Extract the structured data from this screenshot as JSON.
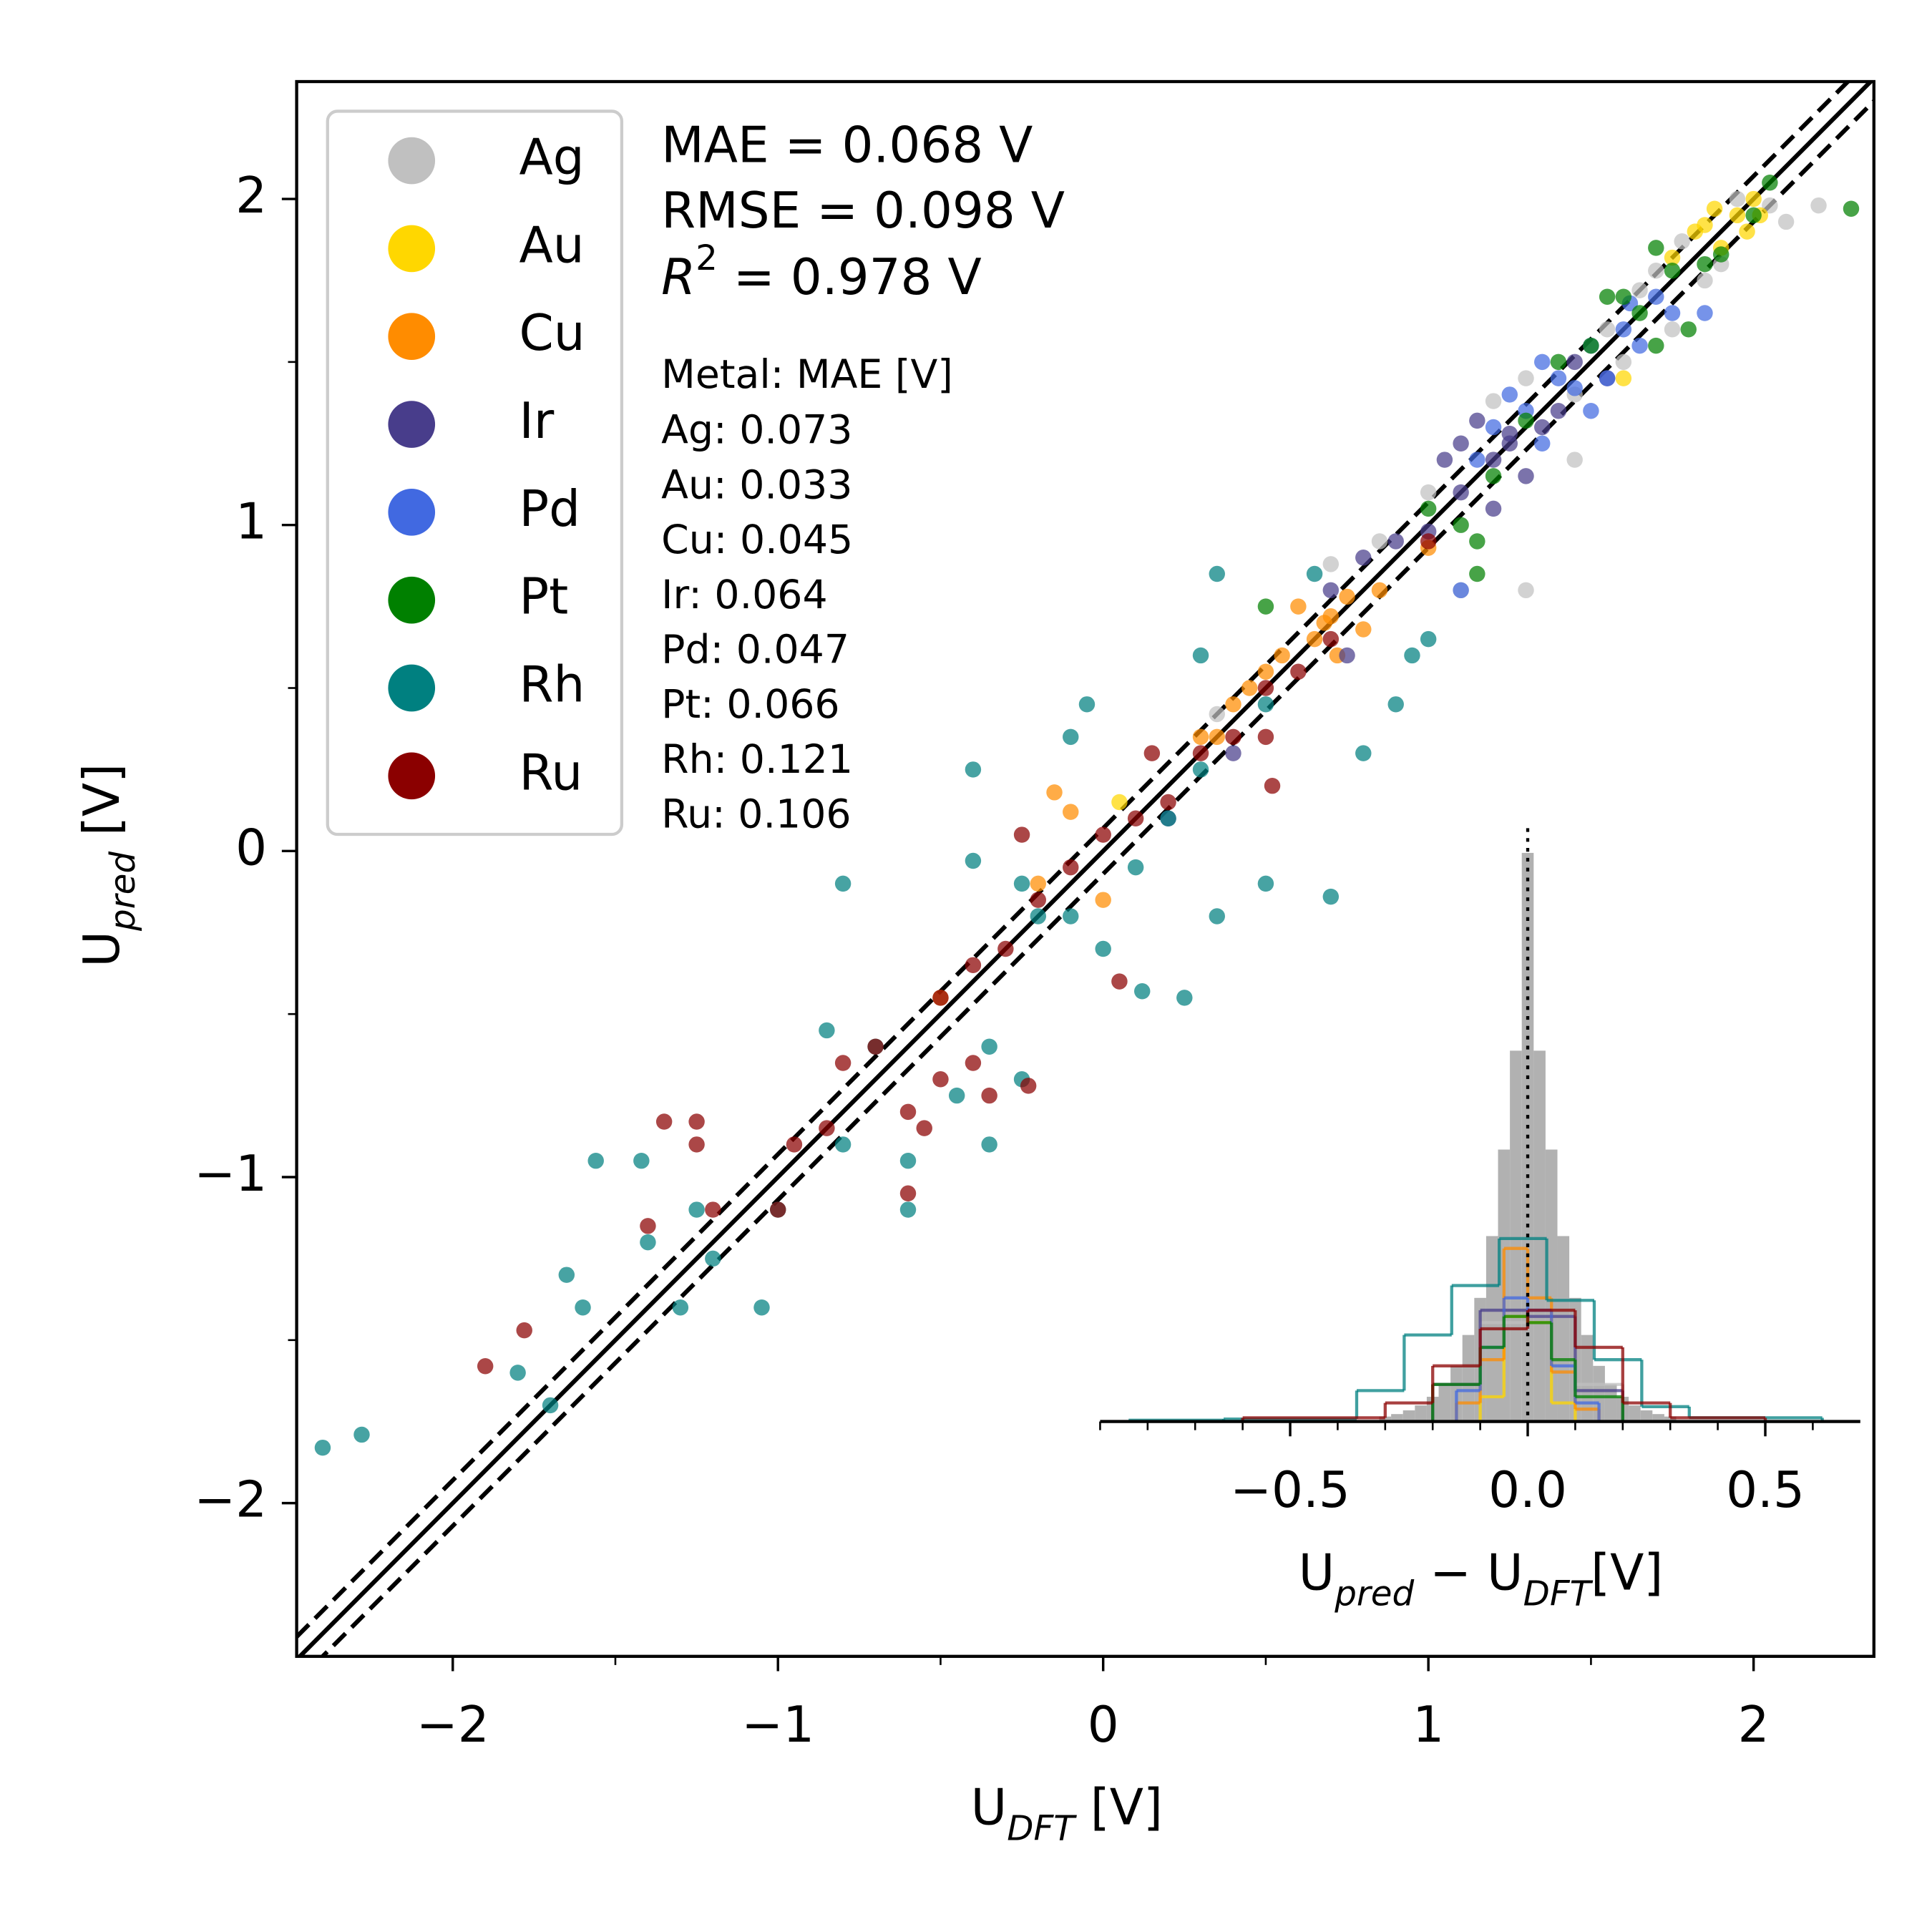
{
  "chart_data": [
    {
      "type": "scatter",
      "xlabel": {
        "base": "U",
        "sub": "DFT",
        "rest": " [V]"
      },
      "ylabel": {
        "base": "U",
        "sub": "pred",
        "rest": " [V]"
      },
      "xlim": [
        -2.48,
        2.37
      ],
      "ylim": [
        -2.47,
        2.36
      ],
      "xticks": [
        {
          "value": -2,
          "label": "−2"
        },
        {
          "value": -1,
          "label": "−1"
        },
        0,
        1,
        2
      ],
      "yticks": [
        {
          "value": -2,
          "label": "−2"
        },
        {
          "value": -1,
          "label": "−1"
        },
        0,
        1,
        2
      ],
      "xminor": [
        -1.5,
        -0.5,
        0.5,
        1.5
      ],
      "yminor": [
        -1.5,
        -0.5,
        0.5,
        1.5
      ],
      "band": 0.07,
      "legend_loc": "upper left",
      "annotations": {
        "mae": "MAE = 0.068 V",
        "rmse": "RMSE = 0.098 V",
        "r2": {
          "base": "R",
          "sup": "2",
          "rest": " = 0.978 V"
        },
        "metal_header": "Metal: MAE [V]",
        "metal_mae": [
          "Ag: 0.073",
          "Au: 0.033",
          "Cu: 0.045",
          "Ir: 0.064",
          "Pd: 0.047",
          "Pt: 0.066",
          "Rh: 0.121",
          "Ru: 0.106"
        ]
      },
      "series": [
        {
          "name": "Ag",
          "color": "#c0c0c0",
          "x": [
            1.95,
            2.05,
            2.1,
            1.78,
            1.85,
            1.7,
            1.55,
            1.45,
            1.2,
            1.3,
            1.6,
            1.75,
            1.0,
            0.85,
            1.1,
            0.35,
            1.45,
            2.2,
            1.65,
            1.9,
            0.7,
            1.3
          ],
          "y": [
            2.0,
            1.98,
            1.93,
            1.87,
            1.75,
            1.78,
            1.6,
            1.4,
            1.38,
            1.45,
            1.5,
            1.6,
            1.1,
            0.95,
            0.8,
            0.42,
            1.2,
            1.98,
            1.72,
            1.8,
            0.88,
            0.8
          ]
        },
        {
          "name": "Au",
          "color": "#ffd700",
          "x": [
            1.85,
            1.95,
            2.0,
            1.9,
            1.82,
            1.98,
            1.75,
            1.6,
            1.88,
            2.02,
            0.05
          ],
          "y": [
            1.92,
            1.95,
            2.0,
            1.85,
            1.9,
            1.9,
            1.82,
            1.45,
            1.97,
            1.95,
            0.15
          ]
        },
        {
          "name": "Cu",
          "color": "#ff8c00",
          "x": [
            0.7,
            0.75,
            0.65,
            0.68,
            0.72,
            0.55,
            0.5,
            0.45,
            0.85,
            0.8,
            0.4,
            0.35,
            -0.1,
            -0.15,
            0.0,
            -0.2,
            0.6,
            1.0,
            0.3,
            -0.5
          ],
          "y": [
            0.72,
            0.78,
            0.65,
            0.7,
            0.6,
            0.6,
            0.55,
            0.5,
            0.8,
            0.68,
            0.45,
            0.35,
            0.12,
            0.18,
            -0.15,
            -0.1,
            0.75,
            0.93,
            0.35,
            -0.45
          ]
        },
        {
          "name": "Ir",
          "color": "#483d8b",
          "x": [
            1.2,
            1.25,
            1.1,
            1.3,
            1.4,
            1.0,
            0.9,
            1.15,
            1.35,
            1.2,
            0.8,
            0.7,
            1.05,
            1.45,
            1.1,
            0.2,
            0.4,
            0.75,
            1.55,
            1.25
          ],
          "y": [
            1.2,
            1.28,
            1.1,
            1.15,
            1.35,
            0.98,
            0.95,
            1.32,
            1.3,
            1.05,
            0.9,
            0.8,
            1.2,
            1.5,
            1.25,
            0.1,
            0.3,
            0.6,
            1.45,
            1.25
          ]
        },
        {
          "name": "Pd",
          "color": "#4169e1",
          "x": [
            1.3,
            1.4,
            1.35,
            1.45,
            1.5,
            1.55,
            1.2,
            1.25,
            1.6,
            1.7,
            1.75,
            1.85,
            1.1,
            1.65,
            1.5,
            1.15,
            1.35,
            1.62
          ],
          "y": [
            1.35,
            1.45,
            1.5,
            1.42,
            1.55,
            1.45,
            1.3,
            1.4,
            1.6,
            1.7,
            1.65,
            1.65,
            0.8,
            1.55,
            1.35,
            1.2,
            1.25,
            1.68
          ]
        },
        {
          "name": "Pt",
          "color": "#008000",
          "x": [
            1.6,
            1.65,
            1.75,
            1.85,
            1.9,
            2.0,
            2.3,
            1.5,
            1.4,
            1.7,
            1.55,
            1.2,
            1.1,
            1.0,
            1.15,
            1.15,
            0.5,
            1.8,
            2.05,
            1.3,
            1.7
          ],
          "y": [
            1.7,
            1.65,
            1.78,
            1.8,
            1.83,
            1.95,
            1.97,
            1.55,
            1.5,
            1.55,
            1.7,
            1.15,
            1.0,
            1.05,
            0.95,
            0.85,
            0.75,
            1.6,
            2.05,
            1.32,
            1.85
          ]
        },
        {
          "name": "Rh",
          "color": "#008080",
          "x": [
            -2.4,
            -2.28,
            -1.7,
            -1.8,
            -1.6,
            -1.65,
            -1.56,
            -1.42,
            -1.3,
            -1.05,
            -1.4,
            -1.2,
            -1.0,
            -0.8,
            -0.6,
            -0.85,
            -0.7,
            -0.6,
            -0.45,
            -0.35,
            -0.2,
            -0.25,
            -0.1,
            0.1,
            0.2,
            0.3,
            0.35,
            0.5,
            0.8,
            0.7,
            0.35,
            0.3,
            0.5,
            0.9,
            0.95,
            -0.4,
            -0.05,
            -0.1,
            -0.4,
            0.12,
            0.25,
            0.0,
            -0.8,
            -1.25,
            -0.35,
            0.65,
            1.0,
            -0.25
          ],
          "y": [
            -1.83,
            -1.79,
            -1.7,
            -1.6,
            -1.4,
            -1.3,
            -0.95,
            -0.95,
            -1.4,
            -1.4,
            -1.2,
            -1.25,
            -1.1,
            -0.9,
            -1.1,
            -0.55,
            -0.6,
            -0.95,
            -0.75,
            -0.6,
            -0.2,
            -0.7,
            -0.2,
            -0.05,
            0.1,
            0.25,
            -0.2,
            -0.1,
            0.3,
            -0.14,
            0.85,
            0.6,
            0.45,
            0.45,
            0.6,
            0.25,
            0.45,
            0.35,
            -0.03,
            -0.43,
            -0.45,
            -0.3,
            -0.1,
            -1.1,
            -0.9,
            0.85,
            0.65,
            -0.1
          ]
        },
        {
          "name": "Ru",
          "color": "#8b0000",
          "x": [
            -1.9,
            -1.78,
            -1.35,
            -1.25,
            -1.4,
            -1.2,
            -1.0,
            -0.95,
            -0.85,
            -0.7,
            -0.6,
            -0.5,
            -0.4,
            -0.3,
            -0.2,
            -0.1,
            0.0,
            0.1,
            0.2,
            0.3,
            0.4,
            0.5,
            0.6,
            0.5,
            0.05,
            -0.25,
            -0.4,
            -0.8,
            -1.25,
            0.15,
            0.7,
            -0.5,
            -0.35,
            -0.23,
            -0.55,
            0.52,
            -0.6,
            1.0
          ],
          "y": [
            -1.58,
            -1.47,
            -0.83,
            -0.83,
            -1.15,
            -1.1,
            -1.1,
            -0.9,
            -0.85,
            -0.6,
            -0.8,
            -0.45,
            -0.35,
            -0.3,
            -0.15,
            -0.05,
            0.05,
            0.1,
            0.15,
            0.3,
            0.35,
            0.5,
            0.55,
            0.35,
            -0.4,
            0.05,
            -0.65,
            -0.65,
            -0.9,
            0.3,
            0.65,
            -0.7,
            -0.75,
            -0.72,
            -0.85,
            0.2,
            -1.05,
            0.95
          ]
        }
      ]
    },
    {
      "type": "histogram",
      "xlabel": {
        "base1": "U",
        "sub1": "pred",
        "mid": " − ",
        "base2": "U",
        "sub2": "DFT",
        "rest": "[V]"
      },
      "xlim": [
        -0.9,
        0.7
      ],
      "ylim": [
        0,
        480
      ],
      "xticks": [
        {
          "value": -0.5,
          "label": "−0.5"
        },
        {
          "value": 0,
          "label": "0.0"
        },
        {
          "value": 0.5,
          "label": "0.5"
        }
      ],
      "xminor": [
        -0.9,
        -0.8,
        -0.7,
        -0.6,
        -0.4,
        -0.3,
        -0.2,
        -0.1,
        0.1,
        0.2,
        0.3,
        0.4,
        0.6
      ],
      "vline": 0,
      "series": [
        {
          "color": "#a9a9a9",
          "filled": true,
          "bins": [
            -0.3125,
            -0.2875,
            -0.2625,
            -0.2375,
            -0.2125,
            -0.1875,
            -0.1625,
            -0.1375,
            -0.1125,
            -0.0875,
            -0.0625,
            -0.0375,
            -0.0125,
            0.0125,
            0.0375,
            0.0625,
            0.0875,
            0.1125,
            0.1375,
            0.1625,
            0.1875,
            0.2125,
            0.2375,
            0.2625,
            0.2875,
            0.3125
          ],
          "values": [
            4,
            6,
            9,
            13,
            20,
            30,
            45,
            70,
            100,
            150,
            220,
            300,
            460,
            300,
            220,
            150,
            100,
            70,
            45,
            30,
            20,
            13,
            9,
            6,
            4
          ]
        },
        {
          "color": "#c0c0c0",
          "bins": [
            -0.2,
            -0.1,
            0,
            0.1,
            0.2
          ],
          "values": [
            30,
            80,
            85,
            30
          ]
        },
        {
          "color": "#ffd700",
          "bins": [
            -0.1,
            -0.05,
            0,
            0.05,
            0.1
          ],
          "values": [
            20,
            85,
            80,
            15
          ]
        },
        {
          "color": "#ff8c00",
          "bins": [
            -0.15,
            -0.1,
            -0.05,
            0,
            0.05,
            0.1,
            0.15
          ],
          "values": [
            15,
            50,
            140,
            100,
            40,
            10
          ]
        },
        {
          "color": "#483d8b",
          "bins": [
            -0.2,
            -0.1,
            0,
            0.1,
            0.2
          ],
          "values": [
            30,
            90,
            85,
            25
          ]
        },
        {
          "color": "#4169e1",
          "bins": [
            -0.15,
            -0.1,
            -0.05,
            0,
            0.05,
            0.1,
            0.15
          ],
          "values": [
            25,
            60,
            100,
            90,
            45,
            15
          ]
        },
        {
          "color": "#008000",
          "bins": [
            -0.2,
            -0.1,
            -0.05,
            0,
            0.05,
            0.1,
            0.2
          ],
          "values": [
            30,
            60,
            85,
            80,
            50,
            20
          ]
        },
        {
          "color": "#008080",
          "bins": [
            -0.84,
            -0.64,
            -0.36,
            -0.26,
            -0.16,
            -0.06,
            0.04,
            0.14,
            0.24,
            0.34,
            0.62
          ],
          "values": [
            1,
            2,
            25,
            70,
            110,
            148,
            98,
            50,
            12,
            3
          ]
        },
        {
          "color": "#8b0000",
          "bins": [
            -0.6,
            -0.3,
            -0.2,
            -0.1,
            0,
            0.1,
            0.2,
            0.3,
            0.5
          ],
          "values": [
            3,
            15,
            45,
            75,
            90,
            60,
            15,
            3
          ]
        }
      ]
    }
  ]
}
